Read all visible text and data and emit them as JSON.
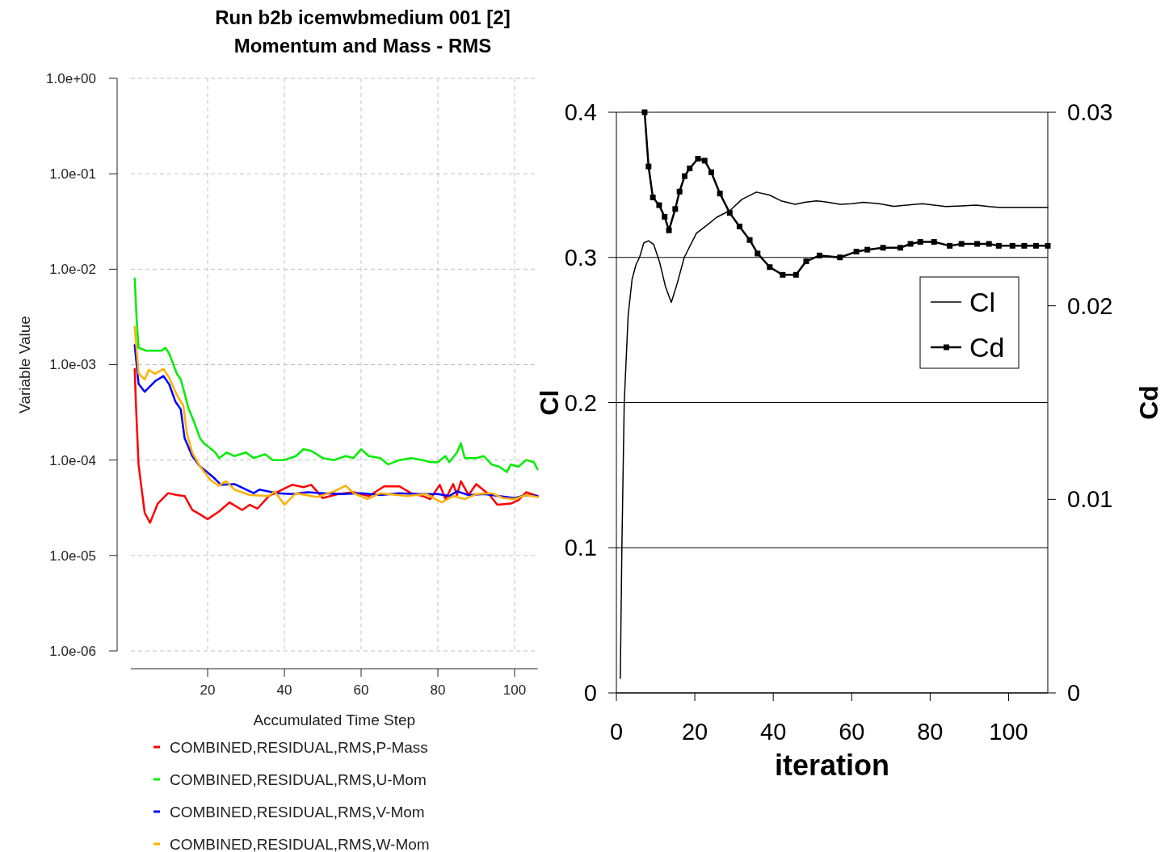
{
  "chart_data": [
    {
      "type": "line",
      "title": "Run b2b icemwbmedium 001 [2]",
      "subtitle": "Momentum and Mass - RMS",
      "xlabel": "Accumulated Time Step",
      "ylabel": "Variable Value",
      "log": "y",
      "grid": true,
      "legend": "bottom",
      "xlim": [
        0,
        106
      ],
      "xticks": [
        20,
        40,
        60,
        80,
        100
      ],
      "ylim": [
        1e-06,
        1
      ],
      "yticks": [
        {
          "value": 1e-06,
          "label": "1.0e-06"
        },
        {
          "value": 1e-05,
          "label": "1.0e-05"
        },
        {
          "value": 0.0001,
          "label": "1.0e-04"
        },
        {
          "value": 0.001,
          "label": "1.0e-03"
        },
        {
          "value": 0.01,
          "label": "1.0e-02"
        },
        {
          "value": 0.1,
          "label": "1.0e-01"
        },
        {
          "value": 1,
          "label": "1.0e+00"
        }
      ],
      "series": [
        {
          "name": "COMBINED,RESIDUAL,RMS,P-Mass",
          "color": "#ff0000",
          "x": [
            1,
            1.3,
            2,
            3.6,
            5,
            7,
            9.7,
            12,
            14,
            16,
            18,
            20,
            23,
            25.7,
            29,
            31,
            33,
            36,
            39,
            42,
            45,
            47,
            50,
            54,
            58,
            62,
            66,
            70,
            73,
            76,
            78,
            80.5,
            82,
            84,
            85,
            86,
            88,
            90,
            93.5,
            95.5,
            99,
            101,
            103,
            106
          ],
          "values": [
            0.0009,
            0.0004,
            9e-05,
            2.8e-05,
            2.2e-05,
            3.5e-05,
            4.5e-05,
            4.3e-05,
            4.2e-05,
            3e-05,
            2.7e-05,
            2.4e-05,
            2.9e-05,
            3.6e-05,
            3e-05,
            3.4e-05,
            3.1e-05,
            4.2e-05,
            4.8e-05,
            5.5e-05,
            5.2e-05,
            5.5e-05,
            4e-05,
            4.4e-05,
            4.6e-05,
            4.2e-05,
            5.3e-05,
            5.3e-05,
            4.5e-05,
            4.2e-05,
            3.9e-05,
            5.5e-05,
            3.9e-05,
            5.6e-05,
            4.3e-05,
            6e-05,
            4.3e-05,
            5.6e-05,
            4.3e-05,
            3.4e-05,
            3.5e-05,
            3.8e-05,
            4.6e-05,
            4.2e-05
          ]
        },
        {
          "name": "COMBINED,RESIDUAL,RMS,U-Mom",
          "color": "#00ee00",
          "x": [
            1,
            1.5,
            2,
            4,
            6,
            8,
            9,
            10,
            12,
            13,
            14,
            15,
            16,
            17,
            18,
            19,
            20,
            22,
            23,
            25,
            27,
            30,
            32,
            35,
            37,
            40,
            43,
            45,
            47,
            50,
            53,
            56,
            58,
            60,
            62,
            65,
            67,
            70,
            73,
            76,
            78,
            80,
            82,
            83,
            85,
            86,
            87,
            90,
            92,
            94,
            96,
            98,
            99,
            101,
            103,
            105,
            106
          ],
          "values": [
            0.008,
            0.003,
            0.0015,
            0.0014,
            0.0014,
            0.0014,
            0.0015,
            0.0013,
            0.0008,
            0.0007,
            0.0005,
            0.00035,
            0.00028,
            0.00022,
            0.00017,
            0.00015,
            0.00014,
            0.00012,
            0.000105,
            0.00012,
            0.00011,
            0.00012,
            0.000105,
            0.000115,
            0.0001,
            0.0001,
            0.00011,
            0.00013,
            0.000125,
            0.000105,
            0.0001,
            0.00011,
            0.000105,
            0.00013,
            0.00011,
            0.000105,
            9e-05,
            0.0001,
            0.000105,
            0.0001,
            9.5e-05,
            9.5e-05,
            0.00011,
            9.5e-05,
            0.00012,
            0.00015,
            0.000105,
            0.000105,
            0.00011,
            9e-05,
            8.5e-05,
            7.5e-05,
            9e-05,
            8.5e-05,
            0.0001,
            9.5e-05,
            8e-05
          ]
        },
        {
          "name": "COMBINED,RESIDUAL,RMS,V-Mom",
          "color": "#0000ff",
          "x": [
            1,
            2,
            3.6,
            6.3,
            8.5,
            10,
            11.6,
            13,
            14,
            16,
            18,
            21.5,
            23.5,
            27,
            32,
            33.5,
            38,
            42,
            46,
            50,
            55,
            60,
            65,
            70,
            75,
            80,
            83,
            85,
            88,
            92,
            96,
            100,
            103,
            106
          ],
          "values": [
            0.0016,
            0.00063,
            0.00052,
            0.00067,
            0.00076,
            0.00062,
            0.00041,
            0.00034,
            0.00017,
            0.00011,
            8.6e-05,
            6.6e-05,
            5.5e-05,
            5.6e-05,
            4.5e-05,
            4.9e-05,
            4.5e-05,
            4.4e-05,
            4.6e-05,
            4.5e-05,
            4.4e-05,
            4.5e-05,
            4.3e-05,
            4.5e-05,
            4.4e-05,
            4.4e-05,
            4.2e-05,
            4.7e-05,
            4.3e-05,
            4.4e-05,
            4.2e-05,
            4e-05,
            4.3e-05,
            4.2e-05
          ]
        },
        {
          "name": "COMBINED,RESIDUAL,RMS,W-Mom",
          "color": "#ffb000",
          "x": [
            1,
            2,
            3.6,
            4.7,
            6.3,
            8.5,
            10,
            12,
            13.7,
            14.6,
            16,
            18,
            20.7,
            22.8,
            24.8,
            27,
            31,
            36,
            37.5,
            40,
            43,
            48.6,
            53,
            56,
            58,
            61.7,
            65,
            72,
            77,
            81,
            84,
            87,
            90,
            94,
            97,
            100,
            103,
            106
          ],
          "values": [
            0.0025,
            0.00081,
            0.0007,
            0.00088,
            0.0008,
            0.0009,
            0.00073,
            0.00048,
            0.00037,
            0.00019,
            0.00012,
            8.6e-05,
            6.2e-05,
            5.4e-05,
            6e-05,
            4.9e-05,
            4.3e-05,
            4.2e-05,
            4.7e-05,
            3.4e-05,
            4.5e-05,
            4.1e-05,
            4.7e-05,
            5.4e-05,
            4.5e-05,
            3.9e-05,
            4.5e-05,
            4.2e-05,
            4.4e-05,
            3.6e-05,
            4.2e-05,
            3.9e-05,
            4.4e-05,
            4.5e-05,
            4e-05,
            3.9e-05,
            4.3e-05,
            4.1e-05
          ]
        }
      ]
    },
    {
      "type": "line",
      "xlabel": "iteration",
      "ylabel": "Cl",
      "y2label": "Cd",
      "grid": "y",
      "legend": "right",
      "xlim": [
        0,
        110
      ],
      "xticks": [
        0,
        20,
        40,
        60,
        80,
        100
      ],
      "ylim": [
        0,
        0.4
      ],
      "yticks": [
        0,
        0.1,
        0.2,
        0.3,
        0.4
      ],
      "y2lim": [
        0,
        0.03
      ],
      "y2ticks": [
        0,
        0.01,
        0.02,
        0.03
      ],
      "series": [
        {
          "name": "Cl",
          "color": "#000000",
          "marker": "none",
          "x": [
            1,
            1.4,
            2,
            3,
            4,
            5,
            5.9,
            7,
            8.2,
            9.5,
            11,
            12.5,
            14,
            15.5,
            17.3,
            20.4,
            23,
            25.6,
            29,
            32,
            35.7,
            39,
            42,
            45.6,
            48,
            51,
            54,
            57,
            60,
            63,
            67,
            70.7,
            74,
            78,
            81,
            84,
            88,
            91.7,
            95,
            97.5,
            104,
            110
          ],
          "values": [
            0.01,
            0.1,
            0.2,
            0.26,
            0.285,
            0.295,
            0.3,
            0.31,
            0.3115,
            0.309,
            0.297,
            0.28,
            0.269,
            0.282,
            0.3,
            0.3166,
            0.322,
            0.3277,
            0.3324,
            0.34,
            0.345,
            0.343,
            0.339,
            0.3366,
            0.338,
            0.339,
            0.338,
            0.3366,
            0.337,
            0.338,
            0.337,
            0.3352,
            0.336,
            0.337,
            0.336,
            0.335,
            0.3355,
            0.336,
            0.335,
            0.3345,
            0.3345,
            0.3345
          ]
        },
        {
          "name": "Cd",
          "color": "#000000",
          "axis": "y2",
          "marker": "square",
          "x": [
            7.2,
            8.2,
            9.3,
            10.9,
            12.3,
            13.4,
            15,
            16.1,
            17.4,
            18.7,
            20.8,
            22.5,
            24.2,
            26.4,
            28.9,
            31.4,
            34,
            36,
            39.1,
            42.4,
            45.8,
            48.4,
            51.8,
            57,
            61.2,
            64,
            68,
            72.4,
            75,
            77.5,
            81,
            85,
            88,
            92,
            95,
            97.5,
            101,
            104,
            107,
            110
          ],
          "values": [
            0.03,
            0.0272,
            0.0256,
            0.0252,
            0.0246,
            0.0239,
            0.025,
            0.0259,
            0.0267,
            0.0271,
            0.0276,
            0.0275,
            0.0269,
            0.0258,
            0.0248,
            0.0241,
            0.0234,
            0.0227,
            0.022,
            0.0216,
            0.0216,
            0.0223,
            0.0226,
            0.0225,
            0.0228,
            0.0229,
            0.023,
            0.023,
            0.0232,
            0.0233,
            0.0233,
            0.0231,
            0.0232,
            0.0232,
            0.0232,
            0.0231,
            0.0231,
            0.0231,
            0.0231,
            0.0231
          ]
        }
      ]
    }
  ]
}
